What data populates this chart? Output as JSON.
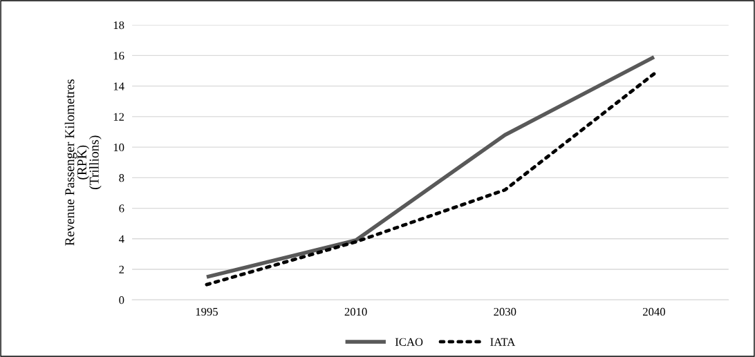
{
  "chart_data": {
    "type": "line",
    "ylabel": "Revenue Passenger Kilometres\n(RPK)\n(Trillions)",
    "categories": [
      "1995",
      "2010",
      "2030",
      "2040"
    ],
    "series": [
      {
        "name": "ICAO",
        "color": "#595959",
        "values": [
          1.5,
          3.9,
          10.8,
          15.9
        ],
        "line_style": "solid"
      },
      {
        "name": "IATA",
        "color": "#000000",
        "values": [
          1.0,
          3.8,
          7.2,
          14.8
        ],
        "line_style": "dotted"
      }
    ],
    "ylim": [
      0,
      18
    ],
    "yticks": [
      0,
      2,
      4,
      6,
      8,
      10,
      12,
      14,
      16,
      18
    ],
    "grid": "y",
    "legend": "bottom",
    "marker": "none"
  }
}
